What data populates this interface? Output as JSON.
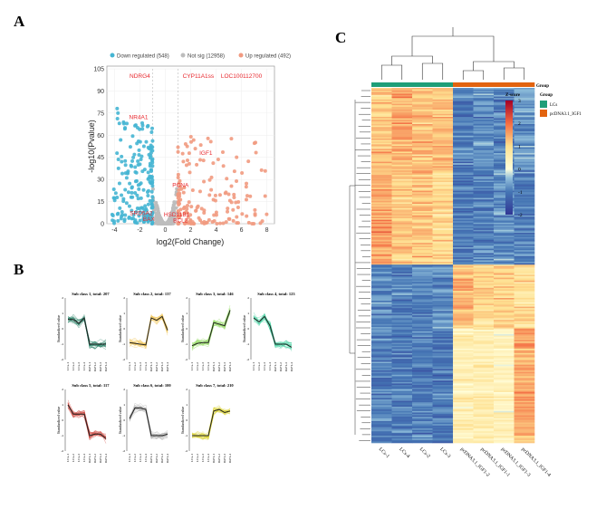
{
  "panels": {
    "a": "A",
    "b": "B",
    "c": "C"
  },
  "chart_data": [
    {
      "type": "scatter",
      "name": "volcano",
      "legend": [
        {
          "label": "Down regulated (548)",
          "color": "#45b5d3",
          "count": 548
        },
        {
          "label": "Not sig (12958)",
          "color": "#bdbdbd",
          "count": 12958
        },
        {
          "label": "Up regulated (492)",
          "color": "#f19a80",
          "count": 492
        }
      ],
      "xlabel": "log2(Fold Change)",
      "ylabel": "-log10(Pvalue)",
      "xlim": [
        -4.6,
        8.6
      ],
      "ylim": [
        0,
        105
      ],
      "xticks": [
        -4,
        -2,
        0,
        2,
        4,
        6,
        8
      ],
      "yticks": [
        0,
        15,
        30,
        45,
        60,
        75,
        90,
        105
      ],
      "thresholds": {
        "fc": [
          -1,
          1
        ]
      },
      "labeled_genes": [
        {
          "name": "NDRG4",
          "x": -2,
          "y": 100
        },
        {
          "name": "CYP11A1ss",
          "x": 2.6,
          "y": 100
        },
        {
          "name": "LOC100112700",
          "x": 6,
          "y": 100
        },
        {
          "name": "NR4A1",
          "x": -2.1,
          "y": 72
        },
        {
          "name": "IGF1",
          "x": 3.2,
          "y": 48
        },
        {
          "name": "PCNA",
          "x": 1.2,
          "y": 26
        },
        {
          "name": "SRD5A2",
          "x": -1.9,
          "y": 7
        },
        {
          "name": "HSD11B1",
          "x": 0.9,
          "y": 6
        },
        {
          "name": "BAX",
          "x": -1.3,
          "y": 3
        },
        {
          "name": "BCL2",
          "x": 1.2,
          "y": 2
        }
      ]
    },
    {
      "type": "line",
      "name": "subclass-trends",
      "categories": [
        "LCs-1",
        "LCs-2",
        "LCs-3",
        "LCs-4",
        "IGF1-1",
        "IGF1-2",
        "IGF1-3",
        "IGF1-4"
      ],
      "ylabel": "Standardized value",
      "ylim": [
        -2,
        2
      ],
      "yticks": [
        -2,
        -1,
        0,
        1,
        2
      ],
      "series": [
        {
          "name": "Sub class 1, total: 207",
          "color": "#1b7a5e",
          "values": [
            0.6,
            0.6,
            0.35,
            0.7,
            -1,
            -1,
            -1,
            -1
          ]
        },
        {
          "name": "Sub class 2, total: 137",
          "color": "#f0c24b",
          "values": [
            -0.9,
            -0.95,
            -1,
            -1.05,
            0.7,
            0.55,
            0.8,
            -0.1
          ]
        },
        {
          "name": "Sub class 3, total: 146",
          "color": "#8ed85a",
          "values": [
            -1.1,
            -0.95,
            -0.9,
            -0.9,
            0.4,
            0.3,
            0.2,
            1.2
          ]
        },
        {
          "name": "Sub class 4, total: 123",
          "color": "#3ccf9c",
          "values": [
            0.7,
            0.45,
            0.8,
            0.2,
            -1,
            -1,
            -1,
            -1.2
          ]
        },
        {
          "name": "Sub class 5, total: 117",
          "color": "#d0463e",
          "values": [
            1.0,
            0.4,
            0.4,
            0.4,
            -1,
            -0.9,
            -0.9,
            -1.2
          ]
        },
        {
          "name": "Sub class 6, total: 100",
          "color": "#a8a8a8",
          "values": [
            0.1,
            0.8,
            0.8,
            0.7,
            -1,
            -1,
            -1,
            -0.9
          ]
        },
        {
          "name": "Sub class 7, total: 210",
          "color": "#d8d02a",
          "values": [
            -1,
            -1,
            -1,
            -1,
            0.6,
            0.7,
            0.5,
            0.6
          ]
        }
      ]
    },
    {
      "type": "heatmap",
      "name": "heatmap",
      "columns": [
        "LCs-1",
        "LCs-4",
        "LCs-2",
        "LCs-3",
        "pcDNA3.1_IGF1-2",
        "pcDNA3.1_IGF1-1",
        "pcDNA3.1_IGF1-3",
        "pcDNA3.1_IGF1-4"
      ],
      "groups": [
        "LCs",
        "LCs",
        "LCs",
        "LCs",
        "pcDNA3.1_IGF1",
        "pcDNA3.1_IGF1",
        "pcDNA3.1_IGF1",
        "pcDNA3.1_IGF1"
      ],
      "group_title": "Group",
      "zscore_title": "Z-score",
      "zscore_ticks": [
        3,
        2,
        1,
        0,
        -1,
        -2
      ],
      "zlim": [
        -2,
        3
      ],
      "group_legend": [
        {
          "label": "LCs",
          "color": "#1f9e78"
        },
        {
          "label": "pcDNA3.1_IGF1",
          "color": "#e2630f"
        }
      ],
      "blocks": [
        {
          "fraction": 0.23,
          "pattern": [
            1.2,
            1.4,
            1.3,
            1.3,
            -0.9,
            -0.8,
            -0.9,
            -0.7
          ]
        },
        {
          "fraction": 0.27,
          "pattern": [
            1.5,
            1.2,
            1.2,
            1.0,
            -1.0,
            -0.9,
            -0.8,
            -0.9
          ]
        },
        {
          "fraction": 0.18,
          "pattern": [
            -0.8,
            -0.9,
            -0.9,
            -0.8,
            1.3,
            1.0,
            1.1,
            0.9
          ]
        },
        {
          "fraction": 0.32,
          "pattern": [
            -0.9,
            -1.0,
            -0.9,
            -1.0,
            0.5,
            0.6,
            0.4,
            1.5
          ]
        }
      ]
    }
  ]
}
